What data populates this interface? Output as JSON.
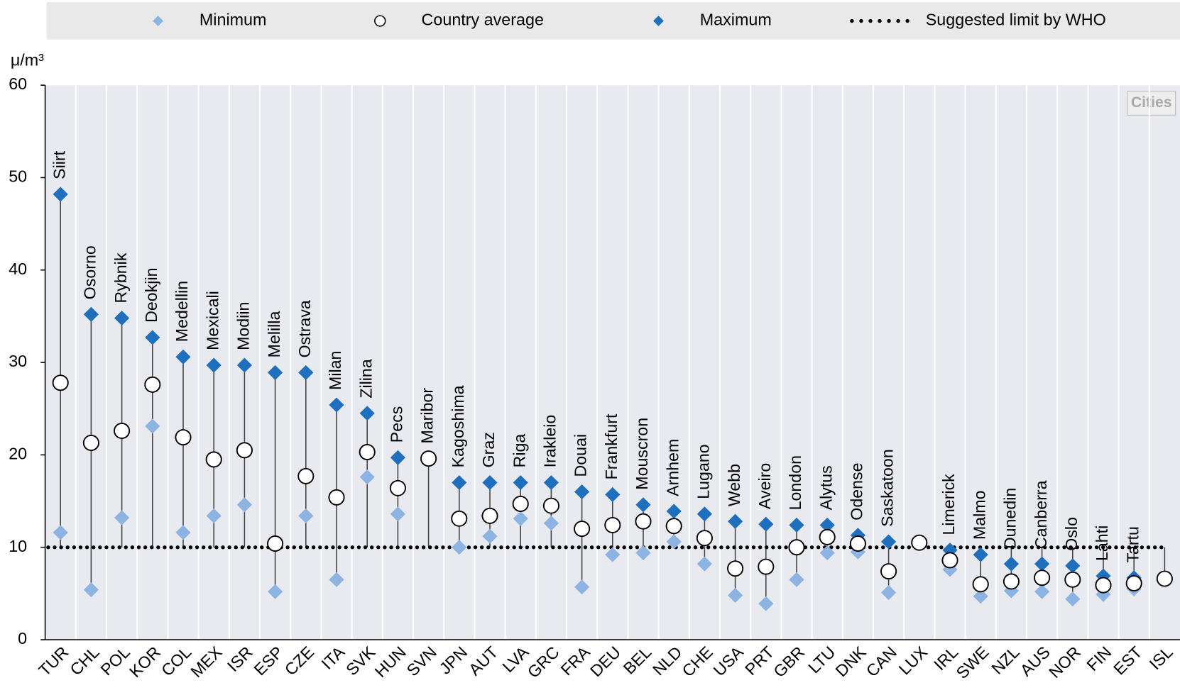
{
  "chart_data": {
    "type": "dotplot",
    "y_unit": "μ/m³",
    "annotation": "Cities",
    "ylim": [
      0,
      60
    ],
    "yticks": [
      0,
      10,
      20,
      30,
      40,
      50,
      60
    ],
    "categories": [
      "TUR",
      "CHL",
      "POL",
      "KOR",
      "COL",
      "MEX",
      "ISR",
      "ESP",
      "CZE",
      "ITA",
      "SVK",
      "HUN",
      "SVN",
      "JPN",
      "AUT",
      "LVA",
      "GRC",
      "FRA",
      "DEU",
      "BEL",
      "NLD",
      "CHE",
      "USA",
      "PRT",
      "GBR",
      "LTU",
      "DNK",
      "CAN",
      "LUX",
      "IRL",
      "SWE",
      "NZL",
      "AUS",
      "NOR",
      "FIN",
      "EST",
      "ISL"
    ],
    "city_labels": [
      "Siirt",
      "Osorno",
      "Rybnik",
      "Deokjin",
      "Medellin",
      "Mexicali",
      "Modiin",
      "Melilla",
      "Ostrava",
      "Milan",
      "Zilina",
      "Pecs",
      "Maribor",
      "Kagoshima",
      "Graz",
      "Riga",
      "Irakleio",
      "Douai",
      "Frankfurt",
      "Mouscron",
      "Arnhem",
      "Lugano",
      "Webb",
      "Aveiro",
      "London",
      "Alytus",
      "Odense",
      "Saskatoon",
      null,
      "Limerick",
      "Malmo",
      "Dunedin",
      "Canberra",
      "Oslo",
      "Lahti",
      "Tartu",
      null
    ],
    "series": [
      {
        "name": "Minimum",
        "color": "#8db3e2",
        "marker": "diamond",
        "values": [
          11.6,
          5.4,
          13.2,
          23.1,
          11.6,
          13.4,
          14.6,
          5.2,
          13.4,
          6.5,
          17.6,
          13.6,
          19.6,
          10.0,
          11.2,
          13.1,
          12.6,
          5.7,
          9.2,
          9.4,
          10.6,
          8.2,
          4.8,
          3.9,
          6.5,
          9.4,
          9.5,
          5.1,
          null,
          7.6,
          4.7,
          5.3,
          5.2,
          4.4,
          4.9,
          5.5,
          null
        ]
      },
      {
        "name": "Country average",
        "color": "#ffffff",
        "marker": "circle",
        "values": [
          27.8,
          21.3,
          22.6,
          27.6,
          21.9,
          19.5,
          20.5,
          10.4,
          17.7,
          15.4,
          20.3,
          16.4,
          19.6,
          13.1,
          13.4,
          14.7,
          14.5,
          12.0,
          12.4,
          12.8,
          12.3,
          11.0,
          7.7,
          7.9,
          10.0,
          11.1,
          10.4,
          7.4,
          10.5,
          8.6,
          6.0,
          6.3,
          6.7,
          6.5,
          5.9,
          6.1,
          6.6
        ]
      },
      {
        "name": "Maximum",
        "color": "#1f6fbf",
        "marker": "diamond",
        "values": [
          48.2,
          35.2,
          34.8,
          32.7,
          30.6,
          29.7,
          29.7,
          28.9,
          28.9,
          25.4,
          24.5,
          19.7,
          19.6,
          17.0,
          17.0,
          17.0,
          17.0,
          16.0,
          15.7,
          14.6,
          13.9,
          13.6,
          12.8,
          12.5,
          12.4,
          12.4,
          11.3,
          10.6,
          null,
          9.7,
          9.2,
          8.2,
          8.2,
          8.0,
          6.9,
          6.7,
          null
        ]
      }
    ],
    "reference_line": {
      "name": "Suggested limit by WHO",
      "value": 10
    }
  }
}
